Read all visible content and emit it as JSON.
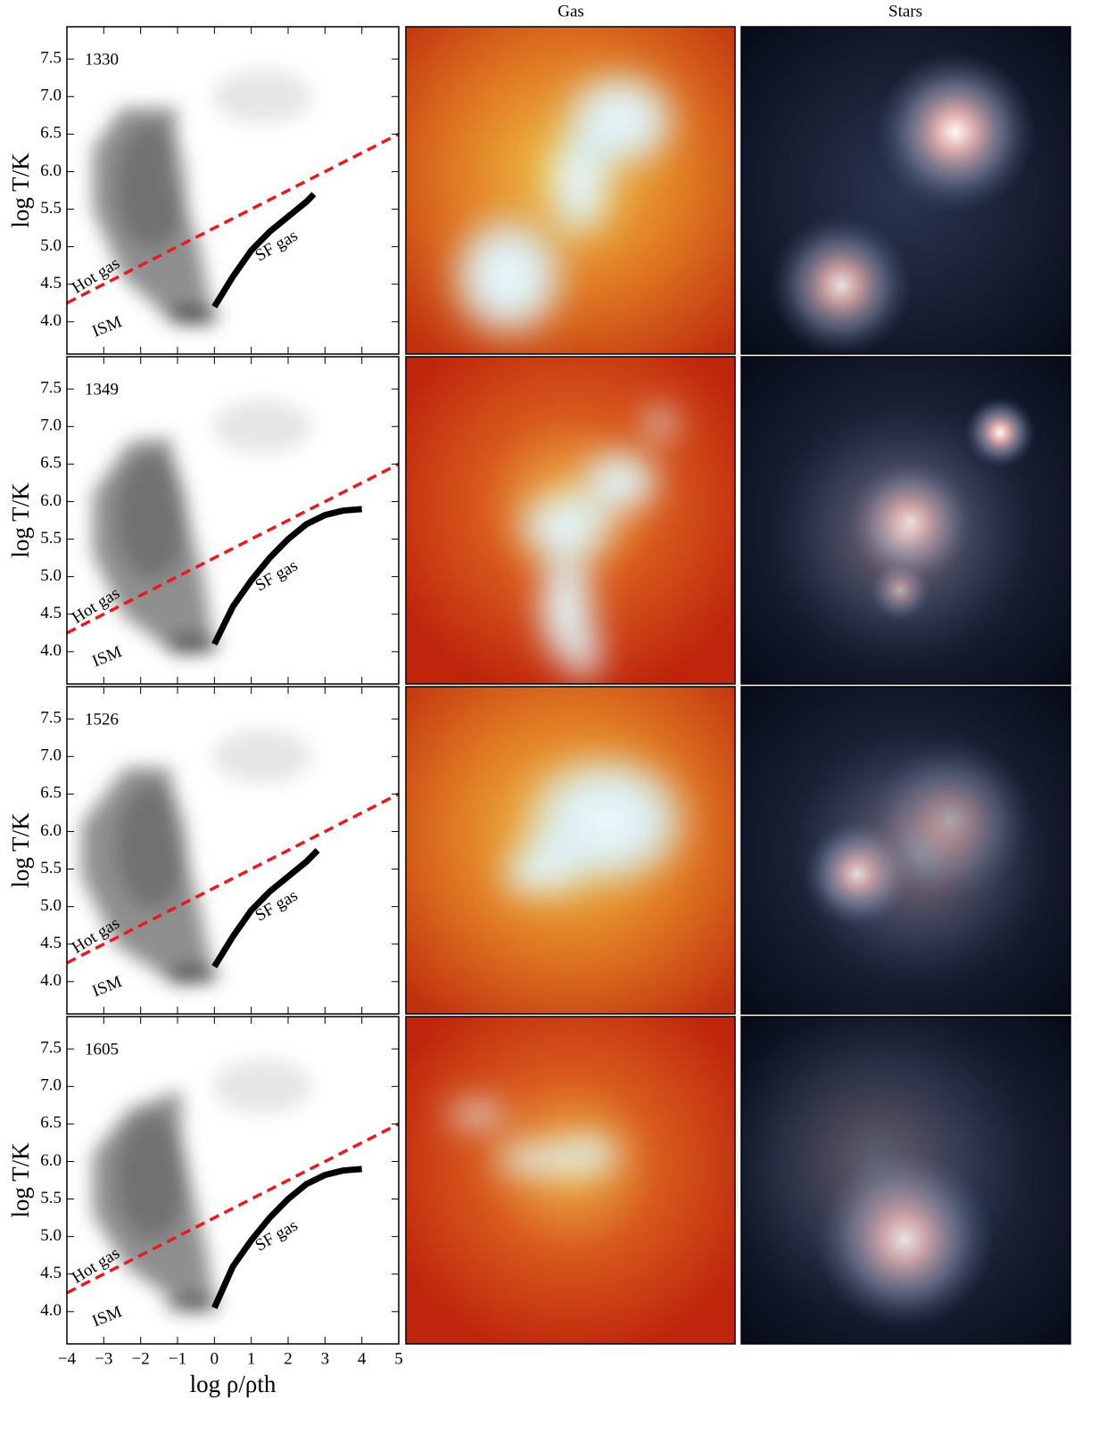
{
  "column_titles": [
    "Gas",
    "Stars"
  ],
  "chart_data": [
    {
      "type": "phase",
      "label": "1330",
      "y_label": "log T/K",
      "xlim": [
        -4,
        5
      ],
      "ylim": [
        3.57,
        7.93
      ],
      "yticks": [
        {
          "value": 4,
          "label": "4.0"
        },
        {
          "value": 4.5,
          "label": "4.5"
        },
        {
          "value": 5,
          "label": "5.0"
        },
        {
          "value": 5.5,
          "label": "5.5"
        },
        {
          "value": 6,
          "label": "6.0"
        },
        {
          "value": 6.5,
          "label": "6.5"
        },
        {
          "value": 7,
          "label": "7.0"
        },
        {
          "value": 7.5,
          "label": "7.5"
        }
      ],
      "threshold": {
        "x": [
          -4,
          5
        ],
        "y": [
          4.25,
          6.5
        ],
        "color": "#e8191f"
      },
      "sf_curve": {
        "x": [
          0,
          0.5,
          1,
          1.5,
          2,
          2.5,
          2.7
        ],
        "y": [
          4.2,
          4.6,
          4.95,
          5.2,
          5.4,
          5.6,
          5.7
        ],
        "color": "#000000"
      },
      "annotations": [
        {
          "text": "Hot gas",
          "color": "#e8191f"
        },
        {
          "text": "SF gas",
          "color": "#1a1aff"
        },
        {
          "text": "ISM",
          "color": "#118811"
        }
      ]
    },
    {
      "type": "phase",
      "label": "1349",
      "y_label": "log T/K",
      "xlim": [
        -4,
        5
      ],
      "ylim": [
        3.57,
        7.93
      ],
      "yticks": [
        {
          "value": 4,
          "label": "4.0"
        },
        {
          "value": 4.5,
          "label": "4.5"
        },
        {
          "value": 5,
          "label": "5.0"
        },
        {
          "value": 5.5,
          "label": "5.5"
        },
        {
          "value": 6,
          "label": "6.0"
        },
        {
          "value": 6.5,
          "label": "6.5"
        },
        {
          "value": 7,
          "label": "7.0"
        },
        {
          "value": 7.5,
          "label": "7.5"
        }
      ],
      "threshold": {
        "x": [
          -4,
          5
        ],
        "y": [
          4.25,
          6.5
        ],
        "color": "#e8191f"
      },
      "sf_curve": {
        "x": [
          0,
          0.5,
          1,
          1.5,
          2,
          2.5,
          3,
          3.5,
          4
        ],
        "y": [
          4.1,
          4.6,
          4.95,
          5.25,
          5.5,
          5.7,
          5.82,
          5.88,
          5.9
        ],
        "color": "#000000"
      },
      "annotations": [
        {
          "text": "Hot gas",
          "color": "#e8191f"
        },
        {
          "text": "SF gas",
          "color": "#1a1aff"
        },
        {
          "text": "ISM",
          "color": "#118811"
        }
      ]
    },
    {
      "type": "phase",
      "label": "1526",
      "y_label": "log T/K",
      "xlim": [
        -4,
        5
      ],
      "ylim": [
        3.57,
        7.93
      ],
      "yticks": [
        {
          "value": 4,
          "label": "4.0"
        },
        {
          "value": 4.5,
          "label": "4.5"
        },
        {
          "value": 5,
          "label": "5.0"
        },
        {
          "value": 5.5,
          "label": "5.5"
        },
        {
          "value": 6,
          "label": "6.0"
        },
        {
          "value": 6.5,
          "label": "6.5"
        },
        {
          "value": 7,
          "label": "7.0"
        },
        {
          "value": 7.5,
          "label": "7.5"
        }
      ],
      "threshold": {
        "x": [
          -4,
          5
        ],
        "y": [
          4.25,
          6.5
        ],
        "color": "#e8191f"
      },
      "sf_curve": {
        "x": [
          0,
          0.5,
          1,
          1.5,
          2,
          2.5,
          2.8
        ],
        "y": [
          4.2,
          4.6,
          4.95,
          5.2,
          5.4,
          5.6,
          5.75
        ],
        "color": "#000000"
      },
      "annotations": [
        {
          "text": "Hot gas",
          "color": "#e8191f"
        },
        {
          "text": "SF gas",
          "color": "#1a1aff"
        },
        {
          "text": "ISM",
          "color": "#118811"
        }
      ]
    },
    {
      "type": "phase",
      "label": "1605",
      "y_label": "log T/K",
      "x_label": "log ρ/ρth",
      "xlim": [
        -4,
        5
      ],
      "ylim": [
        3.57,
        7.93
      ],
      "xticks": [
        {
          "value": -4,
          "label": "−4"
        },
        {
          "value": -3,
          "label": "−3"
        },
        {
          "value": -2,
          "label": "−2"
        },
        {
          "value": -1,
          "label": "−1"
        },
        0,
        1,
        2,
        3,
        4,
        5
      ],
      "yticks": [
        {
          "value": 4,
          "label": "4.0"
        },
        {
          "value": 4.5,
          "label": "4.5"
        },
        {
          "value": 5,
          "label": "5.0"
        },
        {
          "value": 5.5,
          "label": "5.5"
        },
        {
          "value": 6,
          "label": "6.0"
        },
        {
          "value": 6.5,
          "label": "6.5"
        },
        {
          "value": 7,
          "label": "7.0"
        },
        {
          "value": 7.5,
          "label": "7.5"
        }
      ],
      "threshold": {
        "x": [
          -4,
          5
        ],
        "y": [
          4.25,
          6.5
        ],
        "color": "#e8191f"
      },
      "sf_curve": {
        "x": [
          0,
          0.5,
          1,
          1.5,
          2,
          2.5,
          3,
          3.5,
          4
        ],
        "y": [
          4.05,
          4.6,
          4.95,
          5.25,
          5.5,
          5.7,
          5.82,
          5.88,
          5.9
        ],
        "color": "#000000"
      },
      "annotations": [
        {
          "text": "Hot gas",
          "color": "#e8191f"
        },
        {
          "text": "SF gas",
          "color": "#1a1aff"
        },
        {
          "text": "ISM",
          "color": "#118811"
        }
      ]
    }
  ]
}
